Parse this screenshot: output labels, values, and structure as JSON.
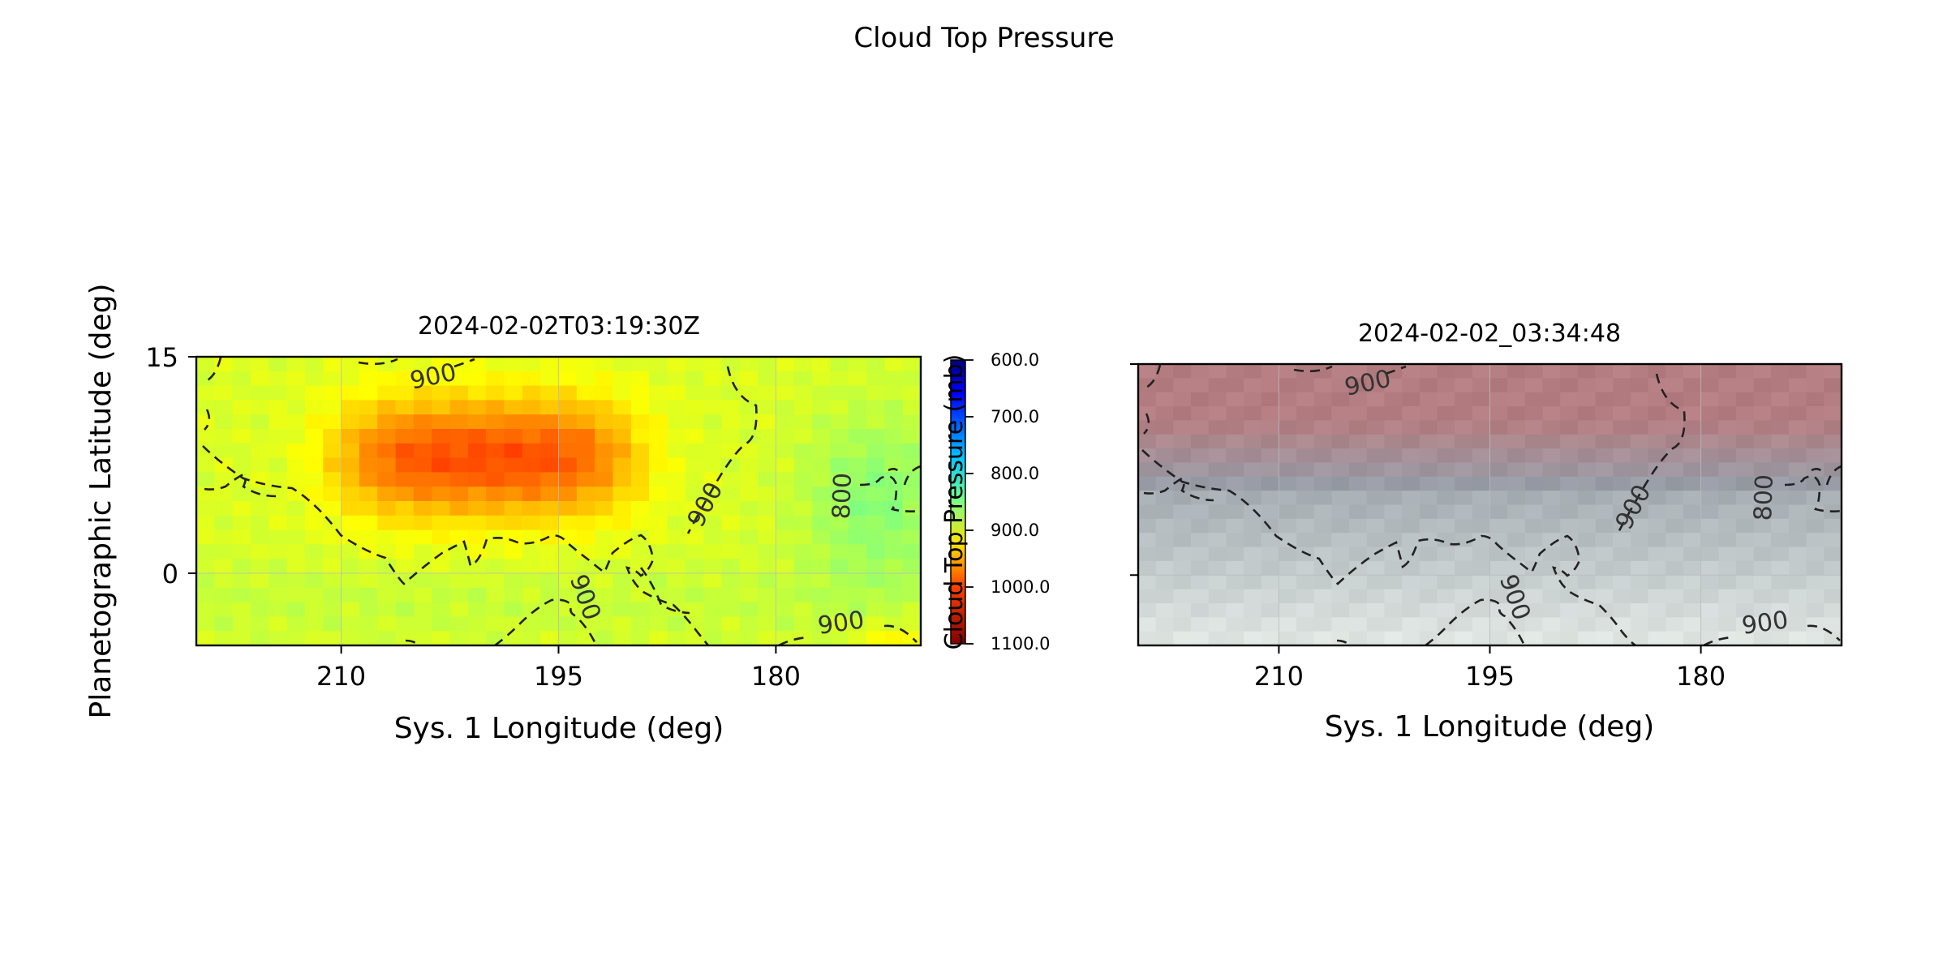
{
  "figure": {
    "title": "Cloud Top Pressure"
  },
  "chart_data": [
    {
      "type": "heatmap",
      "title": "2024-02-02T03:19:30Z",
      "xlabel": "Sys. 1 Longitude (deg)",
      "ylabel": "Planetographic Latitude (deg)",
      "xlim": [
        220,
        170
      ],
      "ylim": [
        -5,
        15
      ],
      "x_ticks": [
        "210",
        "195",
        "180"
      ],
      "x_tick_values": [
        210,
        195,
        180
      ],
      "y_ticks": [
        "15",
        "0"
      ],
      "y_tick_values": [
        15,
        0
      ],
      "grid": true,
      "colormap": "jet_r",
      "colorbar": {
        "label": "Cloud Top Pressure (mb)",
        "range": [
          600,
          1100
        ],
        "ticks": [
          "600.0",
          "700.0",
          "800.0",
          "900.0",
          "1000.0",
          "1100.0"
        ],
        "tick_values": [
          600,
          700,
          800,
          900,
          1000,
          1100
        ]
      },
      "contour_levels": [
        {
          "level": 900,
          "label": "900"
        },
        {
          "level": 800,
          "label": "800"
        }
      ],
      "field_summary": "High pressure ~1000 mb band between 5 and 12 deg latitude from 211 to 190 deg longitude; ~850 mb near 172-178 deg longitude; ~900 mb elsewhere"
    },
    {
      "type": "heatmap",
      "title": "2024-02-02_03:34:48",
      "xlabel": "Sys. 1 Longitude (deg)",
      "xlim": [
        220,
        170
      ],
      "ylim": [
        -5,
        15
      ],
      "x_ticks": [
        "210",
        "195",
        "180"
      ],
      "x_tick_values": [
        210,
        195,
        180
      ],
      "grid": true,
      "image_kind": "true-color composite",
      "contour_levels": [
        {
          "level": 900,
          "label": "900"
        },
        {
          "level": 800,
          "label": "800"
        }
      ]
    }
  ],
  "colors": {
    "contour": "#222222",
    "grid": "#bbbbbb"
  }
}
